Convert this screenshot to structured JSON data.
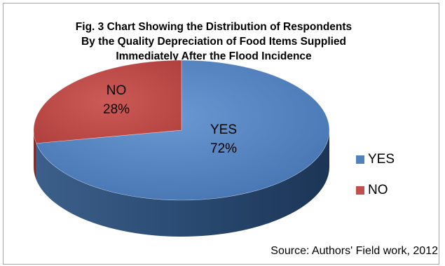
{
  "chart_data": {
    "type": "pie",
    "style": "3d",
    "title_lines": [
      "Fig. 3 Chart Showing the Distribution of Respondents",
      "By the Quality Depreciation of Food Items Supplied",
      "Immediately After the Flood  Incidence"
    ],
    "slices": [
      {
        "label": "YES",
        "value": 72,
        "value_text": "72%",
        "color": "#4f81bd",
        "side_color": "#2d4e74"
      },
      {
        "label": "NO",
        "value": 28,
        "value_text": "28%",
        "color": "#c0504d",
        "side_color": "#7d2f2d"
      }
    ],
    "legend": {
      "position": "right",
      "items": [
        "YES",
        "NO"
      ]
    },
    "source": "Source: Authors' Field work, 2012"
  }
}
